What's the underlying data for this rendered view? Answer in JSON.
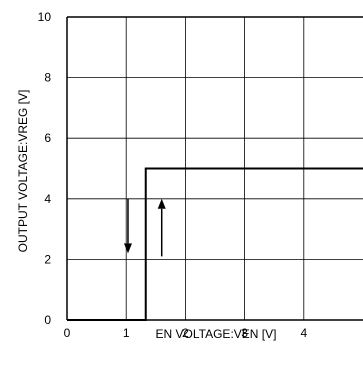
{
  "chart_data": {
    "type": "line",
    "title": "",
    "xlabel": "EN VOLTAGE:VEN [V]",
    "ylabel": "OUTPUT VOLTAGE:VREG [V]",
    "xlim": [
      0,
      5
    ],
    "ylim": [
      0,
      10
    ],
    "x_ticks": [
      0,
      1,
      2,
      3,
      4
    ],
    "y_ticks": [
      0,
      2,
      4,
      6,
      8,
      10
    ],
    "x_tick_labels": [
      "0",
      "1",
      "2",
      "3",
      "4"
    ],
    "y_tick_labels": [
      "0",
      "2",
      "4",
      "6",
      "8",
      "10"
    ],
    "grid": true,
    "series": [
      {
        "x": [
          0,
          1.33,
          1.33,
          1.33,
          5
        ],
        "y": [
          0,
          0,
          0,
          5,
          5
        ]
      }
    ],
    "annotations": [
      {
        "type": "arrow-down",
        "x": 1.03,
        "y_from": 4.0,
        "y_to": 2.2
      },
      {
        "type": "arrow-up",
        "x": 1.6,
        "y_from": 2.1,
        "y_to": 4.0
      }
    ],
    "colors": {
      "line": "#000000",
      "grid": "#000000",
      "background": "#ffffff"
    }
  }
}
